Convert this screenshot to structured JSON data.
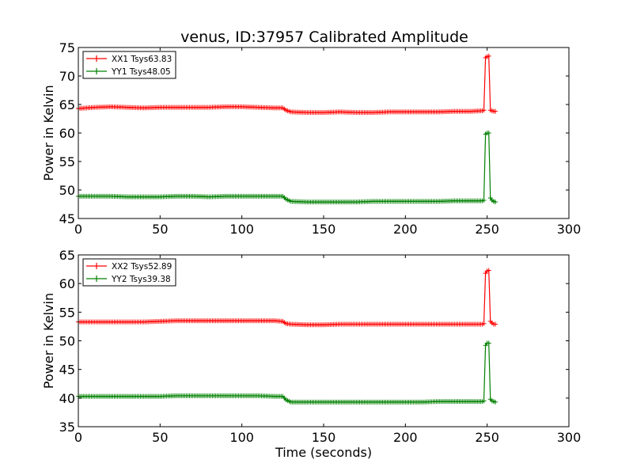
{
  "title": "venus, ID:37957 Calibrated Amplitude",
  "chart_data": [
    {
      "type": "line",
      "title": "venus, ID:37957 Calibrated Amplitude",
      "xlabel": "",
      "ylabel": "Power in Kelvin",
      "xlim": [
        0,
        300
      ],
      "ylim": [
        45,
        75
      ],
      "xticks": [
        "0",
        "50",
        "100",
        "150",
        "200",
        "250",
        "300"
      ],
      "yticks": [
        "45",
        "50",
        "55",
        "60",
        "65",
        "70",
        "75"
      ],
      "grid": false,
      "legend_position": "top-left",
      "series": [
        {
          "name": "XX1 Tsys63.83",
          "color": "#ff0000",
          "x": [
            0,
            10,
            20,
            30,
            40,
            50,
            60,
            70,
            80,
            90,
            100,
            110,
            120,
            125,
            127,
            130,
            140,
            150,
            160,
            170,
            180,
            190,
            200,
            210,
            220,
            230,
            240,
            247,
            248,
            249,
            250,
            251,
            252,
            253,
            254,
            255
          ],
          "y": [
            64.3,
            64.5,
            64.6,
            64.5,
            64.4,
            64.5,
            64.5,
            64.5,
            64.5,
            64.6,
            64.6,
            64.5,
            64.4,
            64.4,
            64.0,
            63.7,
            63.6,
            63.6,
            63.7,
            63.6,
            63.6,
            63.7,
            63.7,
            63.7,
            63.7,
            63.8,
            63.8,
            63.9,
            64.0,
            73.2,
            73.4,
            73.5,
            64.0,
            63.9,
            63.8,
            63.8
          ]
        },
        {
          "name": "YY1 Tsys48.05",
          "color": "#008000",
          "x": [
            0,
            10,
            20,
            30,
            40,
            50,
            60,
            70,
            80,
            90,
            100,
            110,
            120,
            125,
            127,
            130,
            140,
            150,
            160,
            170,
            180,
            190,
            200,
            210,
            220,
            230,
            240,
            247,
            248,
            249,
            250,
            251,
            252,
            253,
            254,
            255
          ],
          "y": [
            48.9,
            48.9,
            48.9,
            48.8,
            48.8,
            48.8,
            48.9,
            48.9,
            48.8,
            48.9,
            48.9,
            48.9,
            48.9,
            48.9,
            48.4,
            48.0,
            47.9,
            47.9,
            47.9,
            47.9,
            48.0,
            48.0,
            48.0,
            48.0,
            48.0,
            48.1,
            48.1,
            48.1,
            48.2,
            59.8,
            60.0,
            60.0,
            48.6,
            48.2,
            48.0,
            47.9
          ]
        }
      ]
    },
    {
      "type": "line",
      "title": "",
      "xlabel": "Time (seconds)",
      "ylabel": "Power in Kelvin",
      "xlim": [
        0,
        300
      ],
      "ylim": [
        35,
        65
      ],
      "xticks": [
        "0",
        "50",
        "100",
        "150",
        "200",
        "250",
        "300"
      ],
      "yticks": [
        "35",
        "40",
        "45",
        "50",
        "55",
        "60",
        "65"
      ],
      "grid": false,
      "legend_position": "top-left",
      "series": [
        {
          "name": "XX2 Tsys52.89",
          "color": "#ff0000",
          "x": [
            0,
            10,
            20,
            30,
            40,
            50,
            60,
            70,
            80,
            90,
            100,
            110,
            120,
            125,
            127,
            130,
            140,
            150,
            160,
            170,
            180,
            190,
            200,
            210,
            220,
            230,
            240,
            247,
            248,
            249,
            250,
            251,
            252,
            253,
            254,
            255
          ],
          "y": [
            53.3,
            53.3,
            53.3,
            53.3,
            53.3,
            53.4,
            53.5,
            53.5,
            53.5,
            53.5,
            53.5,
            53.5,
            53.5,
            53.4,
            53.0,
            52.9,
            52.8,
            52.8,
            52.9,
            52.9,
            52.9,
            52.9,
            52.9,
            52.9,
            52.9,
            52.9,
            52.9,
            52.9,
            53.0,
            61.8,
            62.2,
            62.3,
            53.4,
            53.1,
            52.9,
            52.9
          ]
        },
        {
          "name": "YY2 Tsys39.38",
          "color": "#008000",
          "x": [
            0,
            10,
            20,
            30,
            40,
            50,
            60,
            70,
            80,
            90,
            100,
            110,
            120,
            125,
            127,
            130,
            140,
            150,
            160,
            170,
            180,
            190,
            200,
            210,
            220,
            230,
            240,
            247,
            248,
            249,
            250,
            251,
            252,
            253,
            254,
            255
          ],
          "y": [
            40.3,
            40.3,
            40.3,
            40.3,
            40.3,
            40.3,
            40.4,
            40.4,
            40.4,
            40.4,
            40.4,
            40.4,
            40.3,
            40.3,
            39.7,
            39.3,
            39.3,
            39.3,
            39.3,
            39.3,
            39.3,
            39.3,
            39.3,
            39.3,
            39.4,
            39.4,
            39.4,
            39.4,
            39.5,
            49.2,
            49.6,
            49.6,
            39.8,
            39.5,
            39.4,
            39.3
          ]
        }
      ]
    }
  ]
}
